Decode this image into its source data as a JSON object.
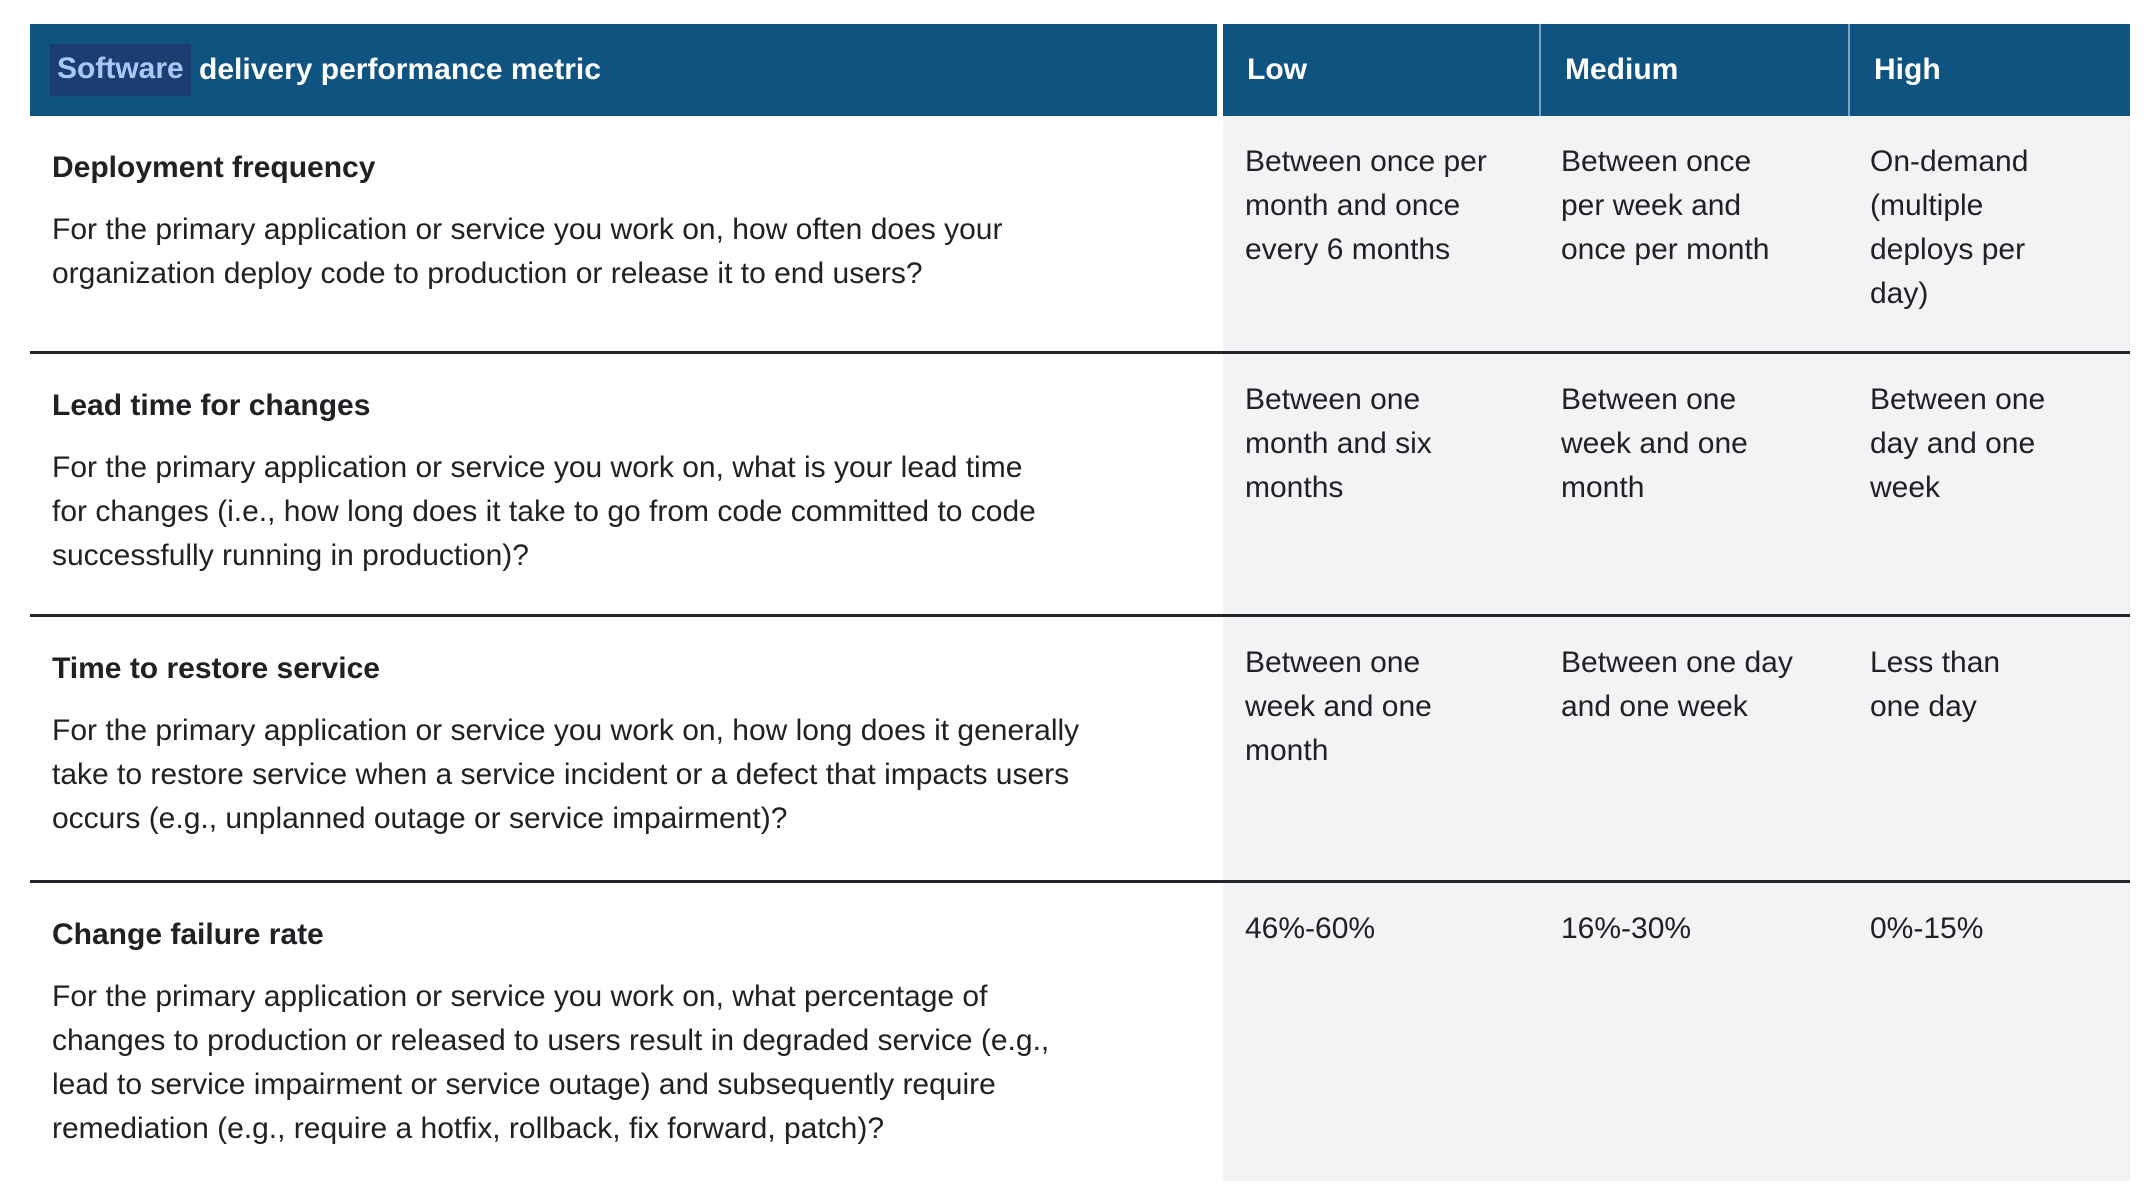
{
  "table": {
    "header": {
      "metric_full": "Software delivery performance metric",
      "metric_highlighted_word": "Software",
      "metric_rest": " delivery performance metric",
      "low": "Low",
      "medium": "Medium",
      "high": "High"
    },
    "rows": [
      {
        "title": "Deployment frequency",
        "description": "For the primary application or service you work on, how often does your\norganization deploy code to production or release it to end users?",
        "low": "Between once per\nmonth and once\nevery 6 months",
        "medium": "Between once\nper week and\nonce per month",
        "high": "On-demand\n(multiple\ndeploys per\nday)"
      },
      {
        "title": "Lead time for changes",
        "description": "For the primary application or service you work on, what is your lead time\nfor changes (i.e., how long does it take to go from code committed to code\nsuccessfully running in production)?",
        "low": "Between one\nmonth and six\nmonths",
        "medium": "Between one\nweek and one\nmonth",
        "high": "Between one\nday and one\nweek"
      },
      {
        "title": "Time to restore service",
        "description": "For the primary application or service you work on, how long does it generally\ntake to restore service when a service incident or a defect that impacts users\noccurs (e.g., unplanned outage or service impairment)?",
        "low": "Between one\nweek and one\nmonth",
        "medium": "Between one day\nand one week",
        "high": "Less than\none day"
      },
      {
        "title": "Change failure rate",
        "description": "For the primary application or service you work on, what percentage of\nchanges to production or released to users result in degraded service (e.g.,\nlead to service impairment or service outage) and subsequently require\nremediation (e.g., require a hotfix, rollback, fix forward, patch)?",
        "low": "46%-60%",
        "medium": "16%-30%",
        "high": "0%-15%"
      }
    ],
    "colors": {
      "header_bg": "#0f5380",
      "header_text": "#ffffff",
      "selection_bg": "#1b3d71",
      "selection_text": "#a9c7fa",
      "body_text": "#202124",
      "value_column_bg": "#f1f3f4",
      "row_divider": "#23262a"
    }
  }
}
